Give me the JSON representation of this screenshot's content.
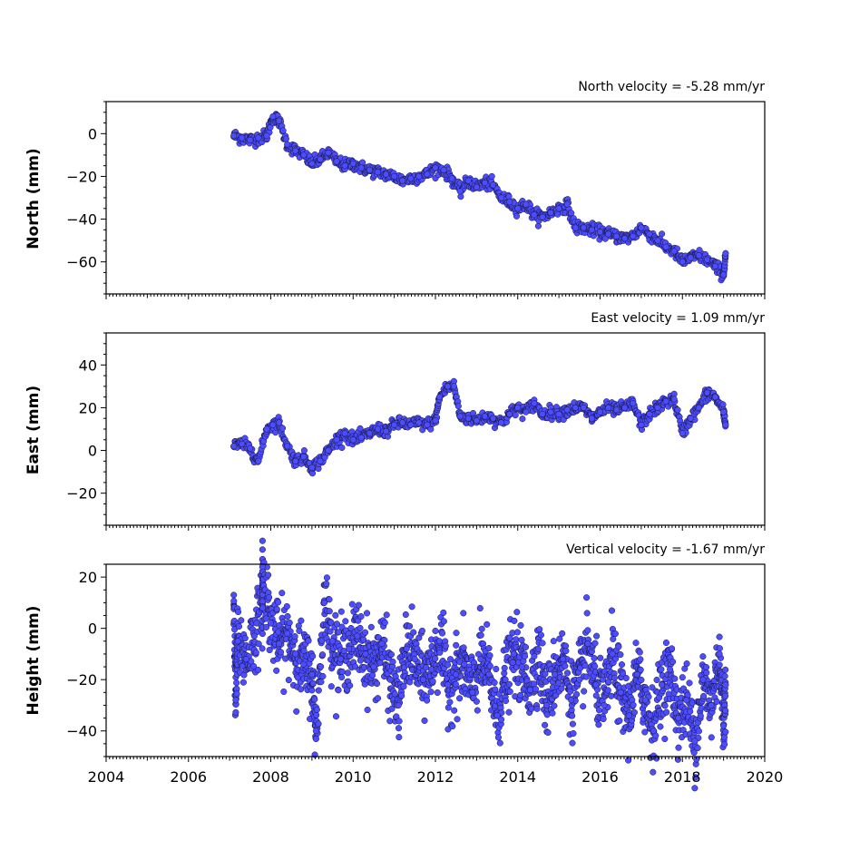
{
  "chart_data": [
    {
      "type": "scatter",
      "title": "North velocity = -5.28 mm/yr",
      "ylabel": "North (mm)",
      "xlim": [
        2004,
        2020
      ],
      "ylim": [
        -75,
        15
      ],
      "y_ticks": [
        0,
        -20,
        -40,
        -60
      ],
      "y_tick_labels": [
        "0",
        "−20",
        "−40",
        "−60"
      ],
      "color": "#4d4dff",
      "series": [
        {
          "x": [
            2007.1,
            2007.3,
            2007.5,
            2007.7,
            2007.9,
            2008.05,
            2008.2,
            2008.4,
            2008.6,
            2008.8,
            2009.0,
            2009.2,
            2009.4,
            2009.6,
            2009.8,
            2010.0,
            2010.2,
            2010.4,
            2010.6,
            2010.8,
            2011.0,
            2011.2,
            2011.4,
            2011.6,
            2011.8,
            2012.0,
            2012.2,
            2012.4,
            2012.6,
            2012.8,
            2013.0,
            2013.2,
            2013.4,
            2013.6,
            2013.8,
            2014.0,
            2014.2,
            2014.4,
            2014.6,
            2014.8,
            2015.0,
            2015.2,
            2015.4,
            2015.6,
            2015.8,
            2016.0,
            2016.2,
            2016.4,
            2016.6,
            2016.8,
            2017.0,
            2017.2,
            2017.4,
            2017.6,
            2017.8,
            2018.0,
            2018.2,
            2018.4,
            2018.6,
            2018.8,
            2019.0,
            2019.05
          ],
          "y": [
            -1,
            -2,
            -3,
            -2,
            -1,
            8,
            6,
            -5,
            -8,
            -10,
            -14,
            -12,
            -9,
            -13,
            -15,
            -14,
            -16,
            -17,
            -18,
            -19,
            -20,
            -22,
            -21,
            -20,
            -19,
            -16,
            -17,
            -21,
            -27,
            -22,
            -25,
            -23,
            -24,
            -30,
            -32,
            -35,
            -33,
            -38,
            -39,
            -37,
            -35,
            -33,
            -44,
            -44,
            -45,
            -46,
            -47,
            -48,
            -49,
            -48,
            -44,
            -47,
            -50,
            -53,
            -55,
            -60,
            -58,
            -57,
            -59,
            -62,
            -66,
            -56
          ]
        }
      ]
    },
    {
      "type": "scatter",
      "title": "East velocity = 1.09 mm/yr",
      "ylabel": "East (mm)",
      "xlim": [
        2004,
        2020
      ],
      "ylim": [
        -35,
        55
      ],
      "y_ticks": [
        40,
        20,
        0,
        -20
      ],
      "y_tick_labels": [
        "40",
        "20",
        "0",
        "−20"
      ],
      "color": "#4d4dff",
      "series": [
        {
          "x": [
            2007.1,
            2007.3,
            2007.5,
            2007.7,
            2007.9,
            2008.05,
            2008.2,
            2008.4,
            2008.6,
            2008.8,
            2009.0,
            2009.2,
            2009.4,
            2009.6,
            2009.8,
            2010.0,
            2010.2,
            2010.4,
            2010.6,
            2010.8,
            2011.0,
            2011.2,
            2011.4,
            2011.6,
            2011.8,
            2012.0,
            2012.1,
            2012.3,
            2012.45,
            2012.6,
            2012.8,
            2013.0,
            2013.2,
            2013.4,
            2013.6,
            2013.8,
            2014.0,
            2014.2,
            2014.4,
            2014.6,
            2014.8,
            2015.0,
            2015.2,
            2015.4,
            2015.6,
            2015.8,
            2016.0,
            2016.2,
            2016.4,
            2016.6,
            2016.8,
            2017.0,
            2017.2,
            2017.4,
            2017.6,
            2017.8,
            2018.0,
            2018.2,
            2018.4,
            2018.6,
            2018.8,
            2019.0,
            2019.05
          ],
          "y": [
            2,
            3,
            1,
            -5,
            10,
            12,
            13,
            2,
            -5,
            -3,
            -8,
            -5,
            0,
            5,
            8,
            5,
            6,
            8,
            10,
            9,
            12,
            13,
            12,
            13,
            12,
            14,
            25,
            30,
            30,
            16,
            15,
            14,
            16,
            15,
            13,
            17,
            20,
            18,
            22,
            17,
            18,
            17,
            19,
            20,
            20,
            15,
            18,
            20,
            19,
            20,
            22,
            12,
            17,
            20,
            23,
            24,
            8,
            15,
            20,
            27,
            25,
            18,
            12
          ]
        }
      ]
    },
    {
      "type": "scatter",
      "title": "Vertical velocity = -1.67 mm/yr",
      "ylabel": "Height (mm)",
      "xlabel": "",
      "xlim": [
        2004,
        2020
      ],
      "ylim": [
        -50,
        25
      ],
      "y_ticks": [
        20,
        0,
        -20,
        -40
      ],
      "y_tick_labels": [
        "20",
        "0",
        "−20",
        "−40"
      ],
      "x_ticks": [
        2004,
        2006,
        2008,
        2010,
        2012,
        2014,
        2016,
        2018,
        2020
      ],
      "x_tick_labels": [
        "2004",
        "2006",
        "2008",
        "2010",
        "2012",
        "2014",
        "2016",
        "2018",
        "2020"
      ],
      "color": "#4d4dff",
      "series": [
        {
          "x": [
            2007.1,
            2007.15,
            2007.2,
            2007.4,
            2007.6,
            2007.8,
            2007.8,
            2008.0,
            2008.2,
            2008.4,
            2008.6,
            2008.8,
            2009.0,
            2009.1,
            2009.3,
            2009.5,
            2009.7,
            2009.9,
            2010.1,
            2010.3,
            2010.5,
            2010.7,
            2010.9,
            2011.1,
            2011.3,
            2011.5,
            2011.7,
            2011.9,
            2012.1,
            2012.3,
            2012.5,
            2012.7,
            2012.9,
            2013.1,
            2013.3,
            2013.5,
            2013.7,
            2013.9,
            2014.1,
            2014.3,
            2014.5,
            2014.7,
            2014.9,
            2015.1,
            2015.3,
            2015.5,
            2015.7,
            2015.9,
            2016.1,
            2016.3,
            2016.5,
            2016.7,
            2016.9,
            2017.1,
            2017.3,
            2017.5,
            2017.7,
            2017.9,
            2018.1,
            2018.3,
            2018.5,
            2018.7,
            2018.9,
            2019.0,
            2019.05
          ],
          "y": [
            13,
            -28,
            -5,
            -12,
            -3,
            8,
            24,
            2,
            -6,
            -2,
            -10,
            -14,
            -18,
            -40,
            10,
            -5,
            -12,
            -8,
            -3,
            -10,
            -15,
            -6,
            -20,
            -30,
            -8,
            -12,
            -20,
            -16,
            -5,
            -22,
            -18,
            -14,
            -25,
            -12,
            -18,
            -34,
            -20,
            -10,
            -15,
            -24,
            -8,
            -30,
            -18,
            -12,
            -28,
            -20,
            -6,
            -22,
            -30,
            -10,
            -25,
            -34,
            -18,
            -28,
            -40,
            -22,
            -16,
            -35,
            -28,
            -44,
            -20,
            -30,
            -10,
            -38,
            -22
          ]
        }
      ]
    }
  ]
}
